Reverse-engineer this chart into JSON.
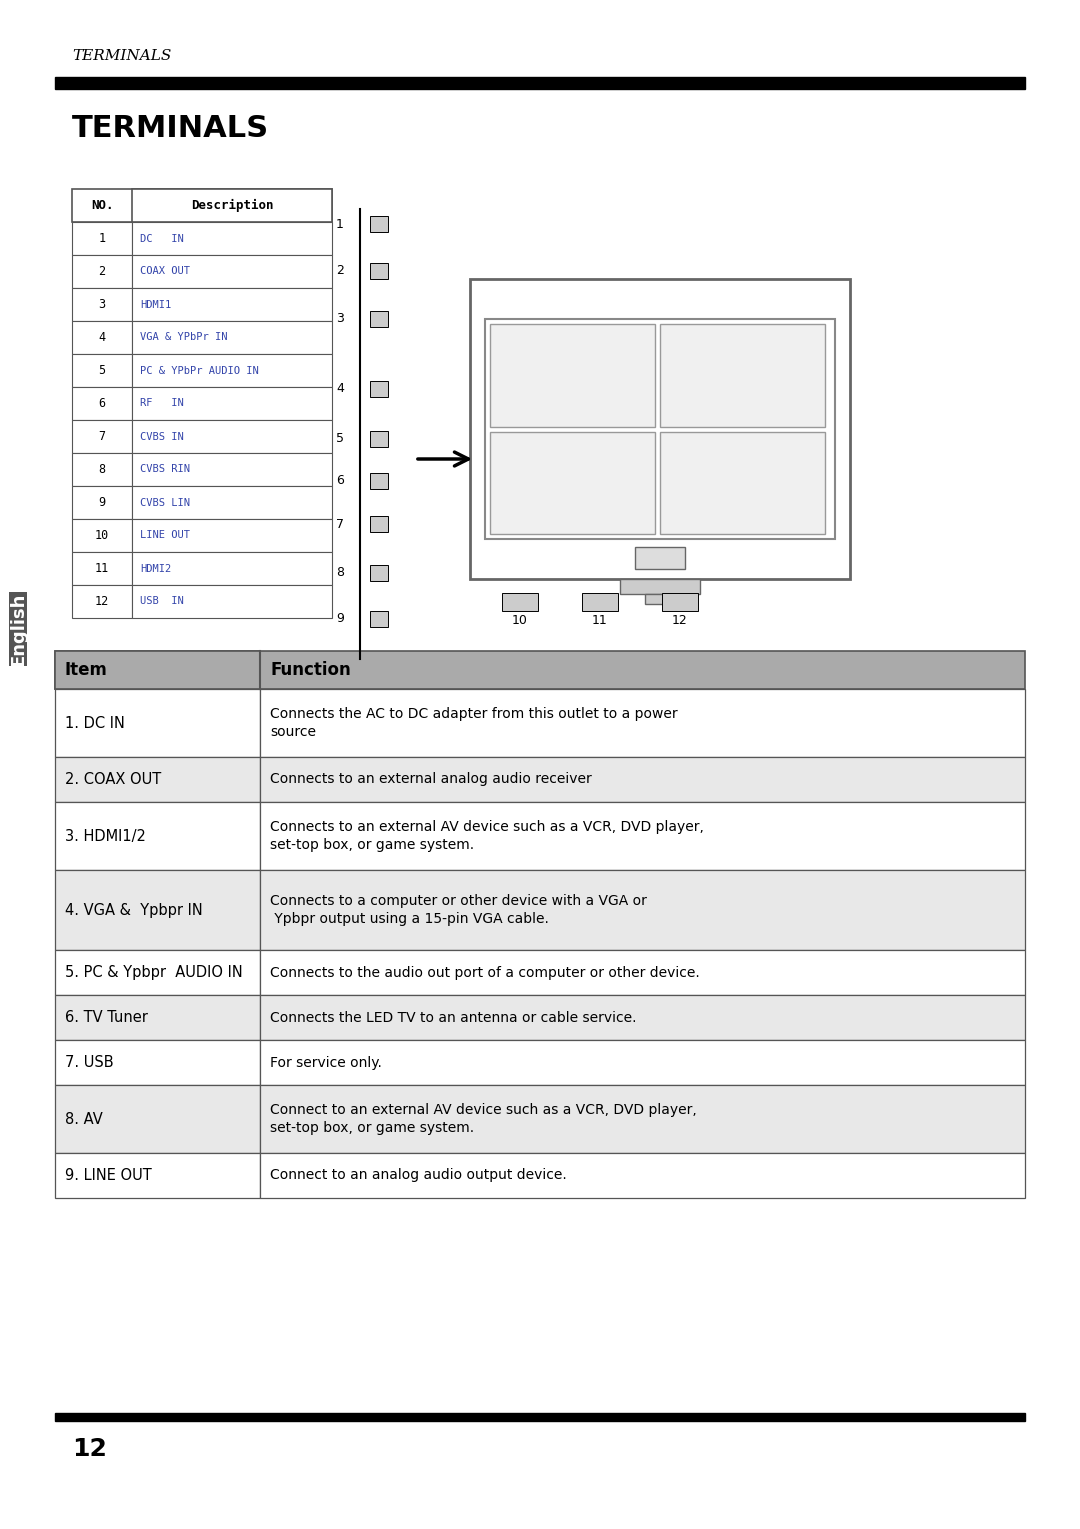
{
  "page_header_italic": "TERMINALS",
  "section_title": "TERMINALS",
  "page_number": "12",
  "sidebar_text": "English",
  "bg_color": "#ffffff",
  "header_bar_color": "#000000",
  "footer_bar_color": "#000000",
  "table_header_bg": "#b0b0b0",
  "table_row_bg_odd": "#e8e8e8",
  "table_row_bg_even": "#ffffff",
  "table_border_color": "#555555",
  "small_table_headers": [
    "NO.",
    "Description"
  ],
  "small_table_rows": [
    [
      "1",
      "DC   IN"
    ],
    [
      "2",
      "COAX OUT"
    ],
    [
      "3",
      "HDMI1"
    ],
    [
      "4",
      "VGA & YPbPr IN"
    ],
    [
      "5",
      "PC & YPbPr AUDIO IN"
    ],
    [
      "6",
      "RF   IN"
    ],
    [
      "7",
      "CVBS IN"
    ],
    [
      "8",
      "CVBS RIN"
    ],
    [
      "9",
      "CVBS LIN"
    ],
    [
      "10",
      "LINE OUT"
    ],
    [
      "11",
      "HDMI2"
    ],
    [
      "12",
      "USB  IN"
    ]
  ],
  "main_table_headers": [
    "Item",
    "Function"
  ],
  "main_table_rows": [
    [
      "1. DC IN",
      "Connects the AC to DC adapter from this outlet to a power\nsource"
    ],
    [
      "2. COAX OUT",
      "Connects to an external analog audio receiver"
    ],
    [
      "3. HDMI1/2",
      "Connects to an external AV device such as a VCR, DVD player,\nset-top box, or game system."
    ],
    [
      "4. VGA &  Ypbpr IN",
      "Connects to a computer or other device with a VGA or\n Ypbpr output using a 15-pin VGA cable."
    ],
    [
      "5. PC & Ypbpr  AUDIO IN",
      "Connects to the audio out port of a computer or other device."
    ],
    [
      "6. TV Tuner",
      "Connects the LED TV to an antenna or cable service."
    ],
    [
      "7. USB",
      "For service only."
    ],
    [
      "8. AV",
      "Connect to an external AV device such as a VCR, DVD player,\nset-top box, or game system."
    ],
    [
      "9. LINE OUT",
      "Connect to an analog audio output device."
    ]
  ],
  "main_table_row_shading": [
    false,
    true,
    false,
    true,
    false,
    true,
    false,
    true,
    false
  ]
}
